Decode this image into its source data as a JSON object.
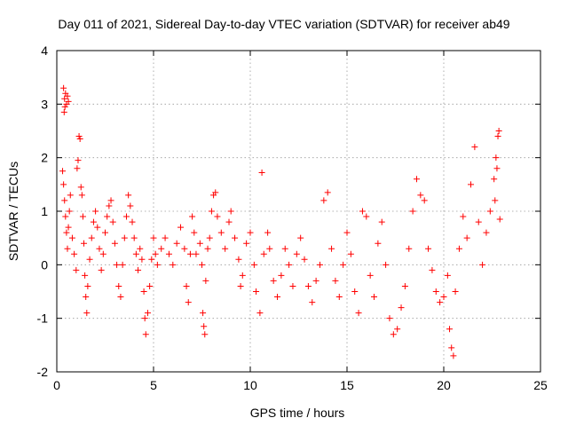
{
  "chart_data": {
    "type": "scatter",
    "title": "Day 011 of 2021, Sidereal Day-to-day VTEC variation (SDTVAR) for receiver ab49",
    "xlabel": "GPS time / hours",
    "ylabel": "SDTVAR / TECUs",
    "xlim": [
      0,
      25
    ],
    "ylim": [
      -2,
      4
    ],
    "xticks": [
      0,
      5,
      10,
      15,
      20,
      25
    ],
    "yticks": [
      -2,
      -1,
      0,
      1,
      2,
      3,
      4
    ],
    "xtick_labels": [
      "0",
      "5",
      "10",
      "15",
      "20",
      "25"
    ],
    "ytick_labels": [
      "-2",
      "-1",
      "0",
      "1",
      "2",
      "3",
      "4"
    ],
    "grid": true,
    "marker": "+",
    "series": [
      {
        "name": "SDTVAR",
        "color": "#ff0000",
        "points": [
          [
            0.35,
            3.3
          ],
          [
            0.4,
            3.1
          ],
          [
            0.45,
            3.2
          ],
          [
            0.5,
            3.0
          ],
          [
            0.55,
            3.15
          ],
          [
            0.6,
            3.05
          ],
          [
            0.38,
            2.85
          ],
          [
            0.42,
            2.95
          ],
          [
            0.3,
            1.75
          ],
          [
            0.35,
            1.5
          ],
          [
            0.4,
            1.2
          ],
          [
            0.45,
            0.9
          ],
          [
            0.5,
            0.6
          ],
          [
            0.55,
            0.3
          ],
          [
            0.6,
            0.7
          ],
          [
            0.65,
            1.0
          ],
          [
            0.7,
            1.3
          ],
          [
            0.8,
            0.5
          ],
          [
            0.9,
            0.2
          ],
          [
            1.0,
            -0.1
          ],
          [
            1.05,
            1.8
          ],
          [
            1.1,
            1.95
          ],
          [
            1.15,
            2.4
          ],
          [
            1.2,
            2.35
          ],
          [
            1.25,
            1.45
          ],
          [
            1.3,
            1.3
          ],
          [
            1.35,
            0.9
          ],
          [
            1.4,
            0.4
          ],
          [
            1.45,
            -0.2
          ],
          [
            1.5,
            -0.6
          ],
          [
            1.55,
            -0.9
          ],
          [
            1.6,
            -0.4
          ],
          [
            1.7,
            0.1
          ],
          [
            1.8,
            0.5
          ],
          [
            1.9,
            0.8
          ],
          [
            2.0,
            1.0
          ],
          [
            2.1,
            0.7
          ],
          [
            2.2,
            0.3
          ],
          [
            2.3,
            -0.1
          ],
          [
            2.4,
            0.2
          ],
          [
            2.5,
            0.6
          ],
          [
            2.6,
            0.9
          ],
          [
            2.7,
            1.1
          ],
          [
            2.8,
            1.2
          ],
          [
            2.9,
            0.8
          ],
          [
            3.0,
            0.4
          ],
          [
            3.1,
            0.0
          ],
          [
            3.2,
            -0.4
          ],
          [
            3.3,
            -0.6
          ],
          [
            3.4,
            0.0
          ],
          [
            3.5,
            0.5
          ],
          [
            3.6,
            0.9
          ],
          [
            3.7,
            1.3
          ],
          [
            3.8,
            1.1
          ],
          [
            3.9,
            0.8
          ],
          [
            4.0,
            0.5
          ],
          [
            4.1,
            0.2
          ],
          [
            4.2,
            -0.1
          ],
          [
            4.3,
            0.3
          ],
          [
            4.4,
            0.1
          ],
          [
            4.5,
            -0.5
          ],
          [
            4.55,
            -1.0
          ],
          [
            4.6,
            -1.3
          ],
          [
            4.7,
            -0.9
          ],
          [
            4.8,
            -0.4
          ],
          [
            4.9,
            0.1
          ],
          [
            5.0,
            0.5
          ],
          [
            5.1,
            0.2
          ],
          [
            5.2,
            0.0
          ],
          [
            5.4,
            0.3
          ],
          [
            5.6,
            0.5
          ],
          [
            5.8,
            0.2
          ],
          [
            6.0,
            0.0
          ],
          [
            6.2,
            0.4
          ],
          [
            6.4,
            0.7
          ],
          [
            6.6,
            0.3
          ],
          [
            6.7,
            -0.4
          ],
          [
            6.8,
            -0.7
          ],
          [
            6.9,
            0.2
          ],
          [
            7.0,
            0.9
          ],
          [
            7.1,
            0.6
          ],
          [
            7.2,
            0.2
          ],
          [
            7.4,
            0.4
          ],
          [
            7.5,
            0.0
          ],
          [
            7.55,
            -0.9
          ],
          [
            7.6,
            -1.15
          ],
          [
            7.65,
            -1.3
          ],
          [
            7.7,
            -0.3
          ],
          [
            7.8,
            0.3
          ],
          [
            7.9,
            0.5
          ],
          [
            8.0,
            1.0
          ],
          [
            8.1,
            1.3
          ],
          [
            8.2,
            1.35
          ],
          [
            8.3,
            0.9
          ],
          [
            8.5,
            0.6
          ],
          [
            8.7,
            0.3
          ],
          [
            8.9,
            0.8
          ],
          [
            9.0,
            1.0
          ],
          [
            9.2,
            0.5
          ],
          [
            9.4,
            0.1
          ],
          [
            9.5,
            -0.4
          ],
          [
            9.6,
            -0.2
          ],
          [
            9.8,
            0.4
          ],
          [
            10.0,
            0.6
          ],
          [
            10.2,
            0.0
          ],
          [
            10.3,
            -0.5
          ],
          [
            10.5,
            -0.9
          ],
          [
            10.6,
            1.72
          ],
          [
            10.7,
            0.2
          ],
          [
            10.9,
            0.6
          ],
          [
            11.0,
            0.3
          ],
          [
            11.2,
            -0.3
          ],
          [
            11.4,
            -0.6
          ],
          [
            11.6,
            -0.2
          ],
          [
            11.8,
            0.3
          ],
          [
            12.0,
            0.0
          ],
          [
            12.2,
            -0.4
          ],
          [
            12.4,
            0.2
          ],
          [
            12.6,
            0.5
          ],
          [
            12.8,
            0.1
          ],
          [
            13.0,
            -0.4
          ],
          [
            13.2,
            -0.7
          ],
          [
            13.4,
            -0.3
          ],
          [
            13.6,
            0.0
          ],
          [
            13.8,
            1.2
          ],
          [
            14.0,
            1.35
          ],
          [
            14.2,
            0.3
          ],
          [
            14.4,
            -0.3
          ],
          [
            14.6,
            -0.6
          ],
          [
            14.8,
            0.0
          ],
          [
            15.0,
            0.6
          ],
          [
            15.2,
            0.2
          ],
          [
            15.4,
            -0.5
          ],
          [
            15.6,
            -0.9
          ],
          [
            15.8,
            1.0
          ],
          [
            16.0,
            0.9
          ],
          [
            16.2,
            -0.2
          ],
          [
            16.4,
            -0.6
          ],
          [
            16.6,
            0.4
          ],
          [
            16.8,
            0.8
          ],
          [
            17.0,
            0.0
          ],
          [
            17.2,
            -1.0
          ],
          [
            17.4,
            -1.3
          ],
          [
            17.6,
            -1.2
          ],
          [
            17.8,
            -0.8
          ],
          [
            18.0,
            -0.4
          ],
          [
            18.2,
            0.3
          ],
          [
            18.4,
            1.0
          ],
          [
            18.6,
            1.6
          ],
          [
            18.8,
            1.3
          ],
          [
            19.0,
            1.2
          ],
          [
            19.2,
            0.3
          ],
          [
            19.4,
            -0.1
          ],
          [
            19.6,
            -0.5
          ],
          [
            19.8,
            -0.7
          ],
          [
            20.0,
            -0.6
          ],
          [
            20.2,
            -0.2
          ],
          [
            20.3,
            -1.2
          ],
          [
            20.4,
            -1.55
          ],
          [
            20.5,
            -1.7
          ],
          [
            20.6,
            -0.5
          ],
          [
            20.8,
            0.3
          ],
          [
            21.0,
            0.9
          ],
          [
            21.2,
            0.5
          ],
          [
            21.4,
            1.5
          ],
          [
            21.6,
            2.2
          ],
          [
            21.8,
            0.8
          ],
          [
            22.0,
            0.0
          ],
          [
            22.2,
            0.6
          ],
          [
            22.4,
            1.0
          ],
          [
            22.6,
            1.6
          ],
          [
            22.8,
            2.4
          ],
          [
            22.85,
            2.5
          ],
          [
            22.9,
            0.85
          ],
          [
            22.7,
            2.0
          ],
          [
            22.75,
            1.8
          ],
          [
            22.65,
            1.2
          ]
        ]
      }
    ]
  }
}
